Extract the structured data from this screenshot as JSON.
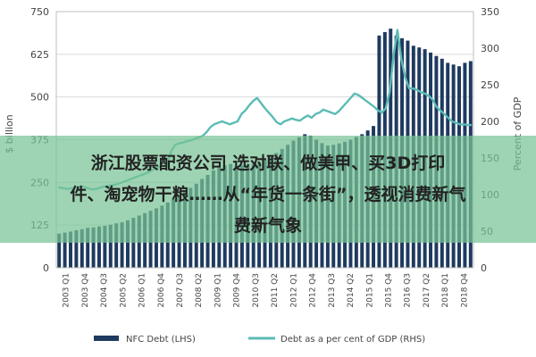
{
  "chart_data": {
    "type": "bar+line",
    "x_tick_labels": [
      "2003 Q1",
      "2003 Q4",
      "2004 Q3",
      "2005 Q2",
      "2006 Q1",
      "2006 Q4",
      "2007 Q3",
      "2008 Q2",
      "2009 Q1",
      "2009 Q4",
      "2010 Q3",
      "2011 Q2",
      "2012 Q1",
      "2012 Q4",
      "2013 Q3",
      "2014 Q2",
      "2015 Q1",
      "2015 Q4",
      "2016 Q3",
      "2017 Q2",
      "2018 Q1",
      "2018 Q4"
    ],
    "left_axis": {
      "ylim": [
        0,
        750
      ],
      "ticks": [
        "0",
        "125",
        "250",
        "375",
        "500",
        "625",
        "750"
      ]
    },
    "right_axis": {
      "ylim": [
        0,
        350
      ],
      "ticks": [
        "0",
        "50",
        "100",
        "150",
        "200",
        "250",
        "300",
        "350"
      ]
    },
    "right_axis_label": "Percent of GDP",
    "left_axis_label": "$ billion",
    "series": [
      {
        "name": "NFC Debt (LHS)",
        "type": "bar",
        "axis": "left",
        "color": "#1f3a5f",
        "values": [
          100,
          103,
          106,
          110,
          113,
          117,
          118,
          121,
          123,
          126,
          130,
          133,
          139,
          146,
          153,
          160,
          167,
          174,
          182,
          191,
          201,
          210,
          222,
          234,
          246,
          260,
          272,
          285,
          295,
          300,
          304,
          298,
          300,
          302,
          305,
          309,
          316,
          325,
          336,
          348,
          360,
          372,
          382,
          391,
          387,
          375,
          365,
          358,
          360,
          364,
          369,
          375,
          383,
          391,
          402,
          415,
          680,
          690,
          700,
          680,
          672,
          665,
          650,
          645,
          640,
          630,
          620,
          612,
          600,
          595,
          590,
          600,
          605
        ]
      },
      {
        "name": "Debt as a per cent of GDP (RHS)",
        "type": "line",
        "axis": "right",
        "color": "#5bbcb5",
        "values": [
          110,
          109,
          108,
          108,
          109,
          110,
          111,
          110,
          108,
          107,
          108,
          110,
          111,
          112,
          113,
          114,
          116,
          118,
          120,
          122,
          124,
          126,
          128,
          130,
          133,
          136,
          138,
          140,
          142,
          160,
          168,
          170,
          171,
          173,
          174,
          176,
          178,
          180,
          185,
          192,
          196,
          198,
          200,
          198,
          196,
          198,
          200,
          210,
          215,
          222,
          228,
          232,
          225,
          218,
          212,
          206,
          199,
          196,
          200,
          202,
          204,
          202,
          201,
          205,
          208,
          205,
          210,
          212,
          216,
          214,
          212,
          210,
          214,
          220,
          226,
          232,
          238,
          236,
          232,
          228,
          224,
          220,
          215,
          212,
          218,
          240,
          290,
          325,
          285,
          260,
          245,
          245,
          243,
          240,
          238,
          235,
          230,
          220,
          215,
          210,
          205,
          200,
          198,
          196,
          196,
          195,
          195
        ]
      }
    ]
  },
  "legend": {
    "items": [
      {
        "label": "NFC Debt (LHS)",
        "color": "#1f3a5f"
      },
      {
        "label": "Debt as a per cent of GDP (RHS)",
        "color": "#5bbcb5"
      }
    ]
  },
  "banner": {
    "line1": "浙江股票配资公司 选对联、做美甲、买3D打印",
    "line2": "件、淘宠物干粮……从“年货一条街”，透视消费新气",
    "line3": "费新气象"
  }
}
